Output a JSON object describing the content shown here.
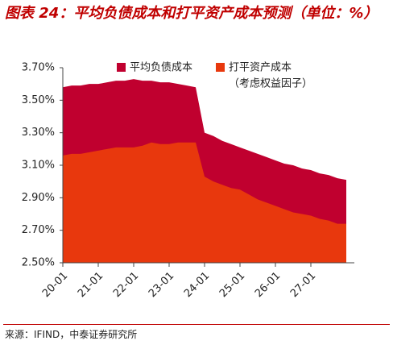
{
  "chart_data": {
    "type": "area",
    "title": "图表 24：平均负债成本和打平资产成本预测（单位：%）",
    "source": "来源：IFIND，中泰证券研究所",
    "categories": [
      "20-01",
      null,
      null,
      null,
      "21-01",
      null,
      null,
      null,
      "22-01",
      null,
      null,
      null,
      "23-01",
      null,
      null,
      null,
      "24-01",
      null,
      null,
      null,
      "25-01",
      null,
      null,
      null,
      "26-01",
      null,
      null,
      null,
      "27-01",
      null,
      null,
      null,
      null
    ],
    "series": [
      {
        "name": "平均负债成本",
        "color": "#c0002f",
        "values": [
          3.58,
          3.59,
          3.59,
          3.6,
          3.6,
          3.61,
          3.62,
          3.62,
          3.63,
          3.62,
          3.62,
          3.61,
          3.61,
          3.6,
          3.59,
          3.58,
          3.3,
          3.28,
          3.25,
          3.23,
          3.21,
          3.19,
          3.17,
          3.15,
          3.13,
          3.11,
          3.1,
          3.08,
          3.07,
          3.05,
          3.04,
          3.02,
          3.01
        ]
      },
      {
        "name": "打平资产成本",
        "note": "（考虑权益因子）",
        "color": "#e8380d",
        "values": [
          3.16,
          3.17,
          3.17,
          3.18,
          3.19,
          3.2,
          3.21,
          3.21,
          3.21,
          3.22,
          3.24,
          3.23,
          3.23,
          3.24,
          3.24,
          3.24,
          3.03,
          3.0,
          2.98,
          2.96,
          2.95,
          2.92,
          2.89,
          2.87,
          2.85,
          2.83,
          2.81,
          2.8,
          2.79,
          2.77,
          2.76,
          2.74,
          2.74
        ]
      }
    ],
    "ylim": [
      2.5,
      3.7
    ],
    "yticks": [
      {
        "value": 2.5,
        "label": "2.50%"
      },
      {
        "value": 2.7,
        "label": "2.70%"
      },
      {
        "value": 2.9,
        "label": "2.90%"
      },
      {
        "value": 3.1,
        "label": "3.10%"
      },
      {
        "value": 3.3,
        "label": "3.30%"
      },
      {
        "value": 3.5,
        "label": "3.50%"
      },
      {
        "value": 3.7,
        "label": "3.70%"
      }
    ],
    "grid": false
  }
}
